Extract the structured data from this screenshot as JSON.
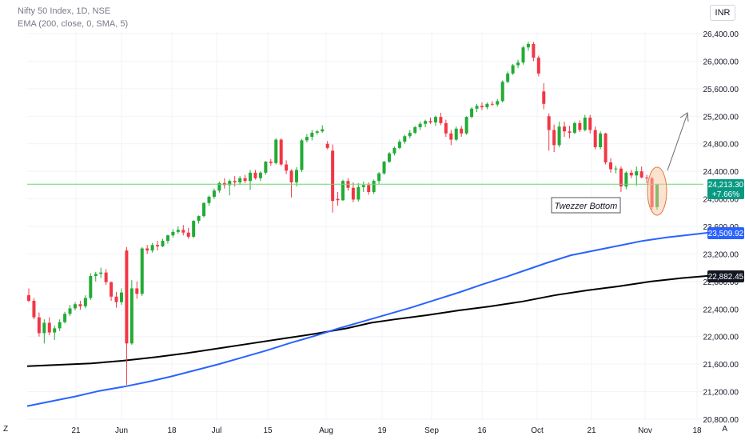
{
  "header": {
    "title": "Nifty 50 Index, 1D, NSE",
    "subtitle": "EMA (200, close, 0, SMA, 5)",
    "currency": "INR"
  },
  "corner_left": "Z",
  "corner_right": "A",
  "annotation": {
    "text": "Twezzer Bottom"
  },
  "price_badges": {
    "last": {
      "price": "24,213.30",
      "change": "+7.66%",
      "color": "#089981"
    },
    "ema_fast": {
      "price": "23,509.92",
      "color": "#2962ff"
    },
    "ema_slow": {
      "price": "22,882.45",
      "color": "#131722"
    }
  },
  "chart_data": {
    "type": "candlestick",
    "y_ticks": [
      "26,400.00",
      "26,000.00",
      "25,600.00",
      "25,200.00",
      "24,800.00",
      "24,400.00",
      "24,000.00",
      "23,600.00",
      "23,200.00",
      "22,800.00",
      "22,400.00",
      "22,000.00",
      "21,600.00",
      "21,200.00",
      "20,800.00"
    ],
    "ylim": [
      20800,
      26400
    ],
    "x_ticks": [
      "21",
      "Jun",
      "18",
      "Jul",
      "15",
      "Aug",
      "19",
      "Sep",
      "16",
      "Oct",
      "21",
      "Nov",
      "18"
    ],
    "colors": {
      "up": "#22ab35",
      "down": "#f23645",
      "ema_fast": "#2962ff",
      "ema_slow": "#000000",
      "last_line": "#6fd66f"
    },
    "last_price": 24213.3,
    "candles": [
      [
        22600,
        22700,
        22500,
        22520
      ],
      [
        22520,
        22560,
        22250,
        22280
      ],
      [
        22280,
        22350,
        22000,
        22050
      ],
      [
        22050,
        22250,
        21900,
        22200
      ],
      [
        22200,
        22280,
        22020,
        22060
      ],
      [
        22060,
        22160,
        21950,
        22120
      ],
      [
        22120,
        22250,
        22080,
        22210
      ],
      [
        22210,
        22360,
        22190,
        22330
      ],
      [
        22330,
        22460,
        22300,
        22410
      ],
      [
        22410,
        22500,
        22380,
        22470
      ],
      [
        22470,
        22520,
        22390,
        22440
      ],
      [
        22440,
        22600,
        22410,
        22560
      ],
      [
        22560,
        22920,
        22530,
        22880
      ],
      [
        22880,
        22940,
        22800,
        22910
      ],
      [
        22910,
        23000,
        22850,
        22930
      ],
      [
        22930,
        22980,
        22750,
        22790
      ],
      [
        22790,
        22800,
        22520,
        22580
      ],
      [
        22580,
        22650,
        22420,
        22500
      ],
      [
        22500,
        22700,
        22460,
        22640
      ],
      [
        23250,
        23300,
        21300,
        21900
      ],
      [
        21900,
        22820,
        21880,
        22700
      ],
      [
        22700,
        22800,
        22550,
        22620
      ],
      [
        22620,
        23300,
        22590,
        23280
      ],
      [
        23280,
        23330,
        23200,
        23250
      ],
      [
        23250,
        23360,
        23220,
        23330
      ],
      [
        23330,
        23390,
        23250,
        23310
      ],
      [
        23310,
        23420,
        23300,
        23390
      ],
      [
        23390,
        23480,
        23350,
        23470
      ],
      [
        23470,
        23560,
        23440,
        23520
      ],
      [
        23520,
        23600,
        23490,
        23550
      ],
      [
        23550,
        23620,
        23470,
        23510
      ],
      [
        23510,
        23580,
        23420,
        23450
      ],
      [
        23450,
        23690,
        23430,
        23680
      ],
      [
        23680,
        23760,
        23640,
        23750
      ],
      [
        23750,
        23950,
        23730,
        23940
      ],
      [
        23940,
        24050,
        23900,
        24030
      ],
      [
        24030,
        24150,
        24000,
        24120
      ],
      [
        24120,
        24250,
        24090,
        24230
      ],
      [
        24230,
        24300,
        24150,
        24200
      ],
      [
        24200,
        24280,
        24050,
        24260
      ],
      [
        24260,
        24330,
        24180,
        24240
      ],
      [
        24240,
        24330,
        24200,
        24300
      ],
      [
        24300,
        24350,
        24230,
        24260
      ],
      [
        24260,
        24420,
        24130,
        24380
      ],
      [
        24380,
        24420,
        24280,
        24300
      ],
      [
        24300,
        24400,
        24260,
        24380
      ],
      [
        24380,
        24550,
        24350,
        24540
      ],
      [
        24540,
        24580,
        24480,
        24520
      ],
      [
        24520,
        24880,
        24500,
        24860
      ],
      [
        24860,
        24880,
        24480,
        24500
      ],
      [
        24500,
        24560,
        24360,
        24410
      ],
      [
        24410,
        24430,
        24020,
        24240
      ],
      [
        24240,
        24460,
        24180,
        24420
      ],
      [
        24420,
        24870,
        24390,
        24850
      ],
      [
        24850,
        24940,
        24820,
        24900
      ],
      [
        24900,
        25000,
        24850,
        24960
      ],
      [
        24960,
        25000,
        24930,
        24980
      ],
      [
        24980,
        25070,
        24960,
        25010
      ],
      [
        24800,
        24840,
        24720,
        24740
      ],
      [
        24700,
        24790,
        23800,
        23970
      ],
      [
        24000,
        24100,
        23900,
        23980
      ],
      [
        23980,
        24280,
        23970,
        24260
      ],
      [
        24260,
        24300,
        24120,
        24160
      ],
      [
        24160,
        24240,
        23950,
        23990
      ],
      [
        23990,
        24230,
        23960,
        24170
      ],
      [
        24170,
        24250,
        24100,
        24200
      ],
      [
        24200,
        24240,
        24060,
        24100
      ],
      [
        24100,
        24280,
        24070,
        24260
      ],
      [
        24260,
        24390,
        24220,
        24370
      ],
      [
        24370,
        24550,
        24350,
        24540
      ],
      [
        24540,
        24680,
        24520,
        24660
      ],
      [
        24660,
        24760,
        24630,
        24740
      ],
      [
        24740,
        24860,
        24720,
        24830
      ],
      [
        24830,
        24930,
        24800,
        24910
      ],
      [
        24910,
        25000,
        24880,
        24960
      ],
      [
        24960,
        25060,
        24940,
        25040
      ],
      [
        25040,
        25120,
        25000,
        25090
      ],
      [
        25090,
        25150,
        25040,
        25130
      ],
      [
        25130,
        25180,
        25090,
        25110
      ],
      [
        25110,
        25210,
        25060,
        25190
      ],
      [
        25190,
        25250,
        25070,
        25100
      ],
      [
        25100,
        25150,
        24900,
        24950
      ],
      [
        24950,
        25000,
        24780,
        24860
      ],
      [
        24860,
        25050,
        24840,
        25020
      ],
      [
        25020,
        25060,
        24900,
        24950
      ],
      [
        24950,
        25200,
        24930,
        25190
      ],
      [
        25190,
        25330,
        25170,
        25310
      ],
      [
        25310,
        25380,
        25260,
        25350
      ],
      [
        25350,
        25400,
        25290,
        25330
      ],
      [
        25330,
        25400,
        25300,
        25380
      ],
      [
        25380,
        25420,
        25350,
        25370
      ],
      [
        25370,
        25450,
        25340,
        25420
      ],
      [
        25420,
        25720,
        25400,
        25700
      ],
      [
        25700,
        25850,
        25680,
        25820
      ],
      [
        25820,
        25960,
        25800,
        25940
      ],
      [
        25940,
        26020,
        25900,
        25980
      ],
      [
        25980,
        26220,
        25950,
        26200
      ],
      [
        26200,
        26280,
        26150,
        26250
      ],
      [
        26250,
        26280,
        26000,
        26050
      ],
      [
        26050,
        26080,
        25780,
        25820
      ],
      [
        25560,
        25680,
        25300,
        25380
      ],
      [
        25200,
        25240,
        24700,
        25000
      ],
      [
        25000,
        25080,
        24680,
        24780
      ],
      [
        24780,
        25120,
        24750,
        25050
      ],
      [
        25050,
        25120,
        24900,
        24980
      ],
      [
        24980,
        25060,
        24880,
        24960
      ],
      [
        24960,
        25120,
        24940,
        25100
      ],
      [
        25100,
        25140,
        24970,
        25000
      ],
      [
        25000,
        25220,
        24980,
        25180
      ],
      [
        25180,
        25220,
        24950,
        25000
      ],
      [
        25000,
        25050,
        24720,
        24750
      ],
      [
        24750,
        24980,
        24720,
        24950
      ],
      [
        24950,
        24960,
        24500,
        24530
      ],
      [
        24530,
        24590,
        24380,
        24430
      ],
      [
        24430,
        24480,
        24370,
        24440
      ],
      [
        24440,
        24470,
        24100,
        24180
      ],
      [
        24180,
        24400,
        24140,
        24380
      ],
      [
        24380,
        24420,
        24300,
        24340
      ],
      [
        24340,
        24470,
        24190,
        24400
      ],
      [
        24400,
        24470,
        24300,
        24310
      ],
      [
        24310,
        24350,
        24230,
        24300
      ],
      [
        24300,
        24320,
        23840,
        23880
      ],
      [
        23880,
        24220,
        23840,
        24213
      ]
    ],
    "ema_fast": [
      [
        0,
        20990
      ],
      [
        30,
        21060
      ],
      [
        60,
        21130
      ],
      [
        90,
        21210
      ],
      [
        120,
        21270
      ],
      [
        150,
        21340
      ],
      [
        180,
        21420
      ],
      [
        210,
        21510
      ],
      [
        240,
        21600
      ],
      [
        270,
        21700
      ],
      [
        300,
        21800
      ],
      [
        330,
        21910
      ],
      [
        360,
        22010
      ],
      [
        390,
        22120
      ],
      [
        420,
        22220
      ],
      [
        450,
        22320
      ],
      [
        480,
        22420
      ],
      [
        510,
        22530
      ],
      [
        540,
        22640
      ],
      [
        570,
        22760
      ],
      [
        600,
        22870
      ],
      [
        630,
        22990
      ],
      [
        650,
        23070
      ],
      [
        680,
        23180
      ],
      [
        710,
        23250
      ],
      [
        740,
        23320
      ],
      [
        770,
        23390
      ],
      [
        800,
        23440
      ],
      [
        830,
        23480
      ],
      [
        853,
        23509.92
      ]
    ],
    "ema_slow": [
      [
        0,
        21570
      ],
      [
        40,
        21590
      ],
      [
        80,
        21610
      ],
      [
        120,
        21650
      ],
      [
        160,
        21700
      ],
      [
        200,
        21760
      ],
      [
        240,
        21830
      ],
      [
        280,
        21900
      ],
      [
        320,
        21970
      ],
      [
        360,
        22040
      ],
      [
        400,
        22120
      ],
      [
        430,
        22200
      ],
      [
        460,
        22250
      ],
      [
        500,
        22310
      ],
      [
        540,
        22380
      ],
      [
        580,
        22440
      ],
      [
        620,
        22510
      ],
      [
        660,
        22600
      ],
      [
        700,
        22670
      ],
      [
        740,
        22730
      ],
      [
        780,
        22800
      ],
      [
        820,
        22850
      ],
      [
        853,
        22882.45
      ]
    ]
  }
}
